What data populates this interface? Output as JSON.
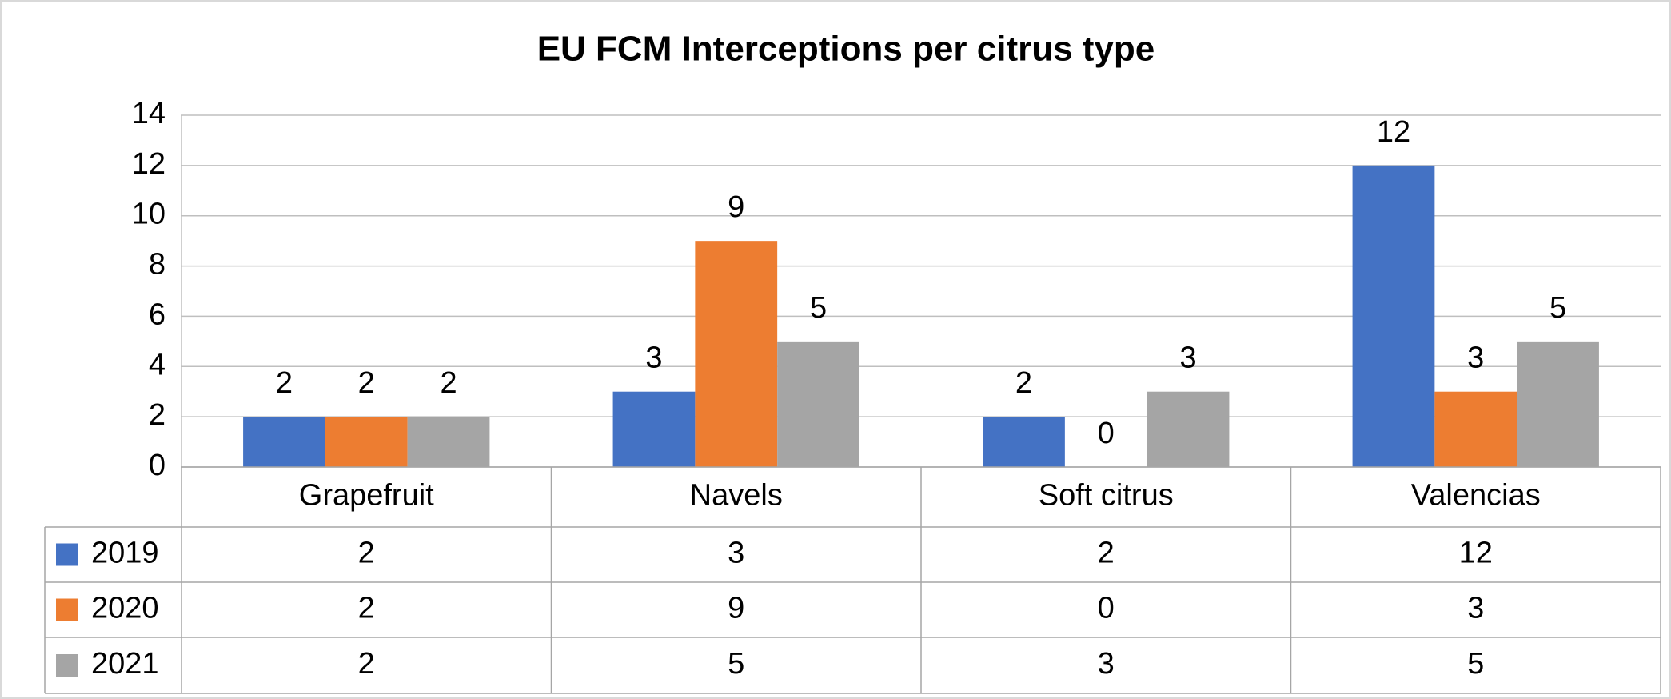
{
  "chart_data": {
    "type": "bar",
    "title": "EU FCM Interceptions per citrus type",
    "categories": [
      "Grapefruit",
      "Navels",
      "Soft citrus",
      "Valencias"
    ],
    "series": [
      {
        "name": "2019",
        "color": "#4472c4",
        "values": [
          2,
          3,
          2,
          12
        ]
      },
      {
        "name": "2020",
        "color": "#ed7d31",
        "values": [
          2,
          9,
          0,
          3
        ]
      },
      {
        "name": "2021",
        "color": "#a5a5a5",
        "values": [
          2,
          5,
          3,
          5
        ]
      }
    ],
    "ylim": [
      0,
      14
    ],
    "yticks": [
      0,
      2,
      4,
      6,
      8,
      10,
      12,
      14
    ],
    "grid": true
  }
}
